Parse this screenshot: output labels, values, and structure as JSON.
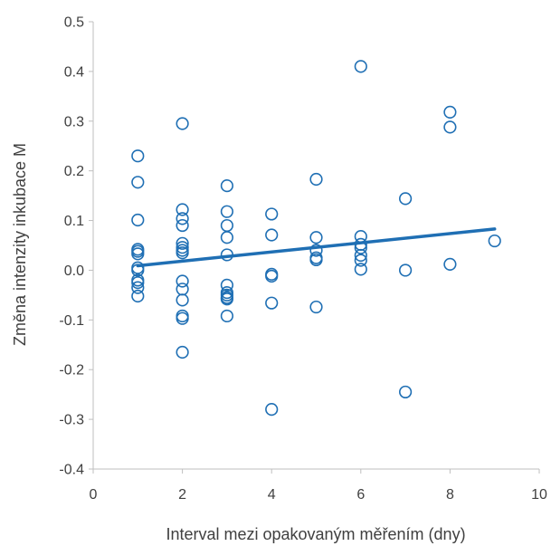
{
  "chart_data": {
    "type": "scatter",
    "xlabel": "Interval mezi opakovaným měřením (dny)",
    "ylabel": "Změna intenzity inkubace  M",
    "xlim": [
      0,
      10
    ],
    "ylim": [
      -0.4,
      0.5
    ],
    "xticks": [
      0,
      2,
      4,
      6,
      8,
      10
    ],
    "yticks": [
      -0.4,
      -0.3,
      -0.2,
      -0.1,
      0.0,
      0.1,
      0.2,
      0.3,
      0.4,
      0.5
    ],
    "xtick_labels": [
      "0",
      "2",
      "4",
      "6",
      "8",
      "10"
    ],
    "ytick_labels": [
      "-0.4",
      "-0.3",
      "-0.2",
      "-0.1",
      "0.0",
      "0.1",
      "0.2",
      "0.3",
      "0.4",
      "0.5"
    ],
    "grid": false,
    "legend": "none",
    "series": [
      {
        "marker": "open-circle",
        "color": "#1f6fb4",
        "points": [
          [
            1,
            0.23
          ],
          [
            1,
            0.177
          ],
          [
            1,
            0.101
          ],
          [
            1,
            0.042
          ],
          [
            1,
            0.038
          ],
          [
            1,
            0.033
          ],
          [
            1,
            0.005
          ],
          [
            1,
            0.0
          ],
          [
            1,
            -0.02
          ],
          [
            1,
            -0.025
          ],
          [
            1,
            -0.035
          ],
          [
            1,
            -0.052
          ],
          [
            2,
            0.295
          ],
          [
            2,
            0.122
          ],
          [
            2,
            0.104
          ],
          [
            2,
            0.09
          ],
          [
            2,
            0.054
          ],
          [
            2,
            0.046
          ],
          [
            2,
            0.04
          ],
          [
            2,
            0.035
          ],
          [
            2,
            -0.022
          ],
          [
            2,
            -0.038
          ],
          [
            2,
            -0.06
          ],
          [
            2,
            -0.092
          ],
          [
            2,
            -0.097
          ],
          [
            2,
            -0.165
          ],
          [
            3,
            0.17
          ],
          [
            3,
            0.118
          ],
          [
            3,
            0.09
          ],
          [
            3,
            0.066
          ],
          [
            3,
            0.031
          ],
          [
            3,
            -0.03
          ],
          [
            3,
            -0.045
          ],
          [
            3,
            -0.05
          ],
          [
            3,
            -0.055
          ],
          [
            3,
            -0.058
          ],
          [
            3,
            -0.092
          ],
          [
            4,
            0.113
          ],
          [
            4,
            0.071
          ],
          [
            4,
            -0.008
          ],
          [
            4,
            -0.012
          ],
          [
            4,
            -0.066
          ],
          [
            4,
            -0.28
          ],
          [
            5,
            0.183
          ],
          [
            5,
            0.066
          ],
          [
            5,
            0.04
          ],
          [
            5,
            0.025
          ],
          [
            5,
            0.021
          ],
          [
            5,
            -0.074
          ],
          [
            6,
            0.41
          ],
          [
            6,
            0.068
          ],
          [
            6,
            0.052
          ],
          [
            6,
            0.045
          ],
          [
            6,
            0.03
          ],
          [
            6,
            0.02
          ],
          [
            6,
            0.002
          ],
          [
            7,
            0.144
          ],
          [
            7,
            0.0
          ],
          [
            7,
            -0.245
          ],
          [
            8,
            0.318
          ],
          [
            8,
            0.288
          ],
          [
            8,
            0.012
          ],
          [
            9,
            0.059
          ]
        ]
      }
    ],
    "trendline": {
      "type": "linear",
      "color": "#1f6fb4",
      "points": [
        [
          1,
          0.009
        ],
        [
          9,
          0.083
        ]
      ]
    }
  }
}
